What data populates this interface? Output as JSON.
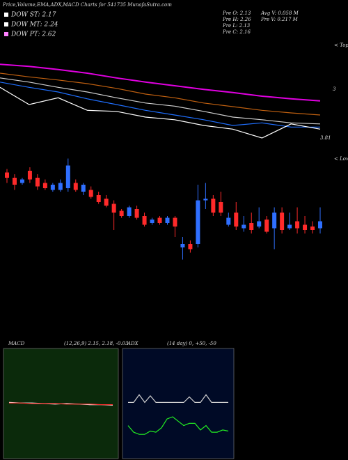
{
  "header": {
    "title": "Price,Volume,EMA,ADX,MACD Charts for 541735 MunafaSutra.com",
    "dow": [
      "DOW ST: 2.17",
      "DOW MT: 2.24",
      "DOW PT: 2.62"
    ],
    "prev": [
      "Pre  O: 2.13",
      "Pre  H: 2.26",
      "Pre  L: 2.13",
      "Pre  C: 2.16"
    ],
    "volume": [
      "Avg V: 0.058 M",
      "Pre  V: 0.217 M"
    ]
  },
  "chart_data": [
    {
      "type": "line",
      "annotations": [
        "< Tops",
        "< Lows",
        "3",
        "3.81"
      ],
      "ylim": [
        2,
        4
      ],
      "series": [
        {
          "color": "#e000e0",
          "values": [
            3.57,
            3.53,
            3.47,
            3.4,
            3.31,
            3.23,
            3.16,
            3.09,
            3.03,
            2.96,
            2.91,
            2.87
          ]
        },
        {
          "color": "#c06010",
          "values": [
            3.4,
            3.33,
            3.27,
            3.2,
            3.11,
            3.0,
            2.93,
            2.83,
            2.76,
            2.69,
            2.64,
            2.6
          ]
        },
        {
          "color": "#d0d0d0",
          "values": [
            3.31,
            3.23,
            3.13,
            3.04,
            2.93,
            2.83,
            2.77,
            2.67,
            2.56,
            2.51,
            2.45,
            2.43
          ]
        },
        {
          "color": "#1f6fff",
          "values": [
            3.23,
            3.13,
            3.04,
            2.91,
            2.8,
            2.69,
            2.6,
            2.51,
            2.4,
            2.45,
            2.37,
            2.37
          ]
        },
        {
          "color": "#ffffff",
          "values": [
            3.13,
            2.8,
            2.93,
            2.69,
            2.67,
            2.56,
            2.51,
            2.4,
            2.33,
            2.16,
            2.43,
            2.33
          ]
        }
      ]
    },
    {
      "type": "candlestick",
      "ylim": [
        1.86,
        3.22
      ],
      "up_color": "#2f6fff",
      "down_color": "#ff2a2a",
      "open": [
        2.47,
        2.44,
        2.41,
        2.48,
        2.44,
        2.41,
        2.37,
        2.37,
        2.38,
        2.41,
        2.36,
        2.37,
        2.34,
        2.32,
        2.29,
        2.25,
        2.22,
        2.26,
        2.22,
        2.18,
        2.21,
        2.18,
        2.21,
        2.04,
        2.06,
        2.06,
        2.31,
        2.32,
        2.3,
        2.17,
        2.24,
        2.15,
        2.18,
        2.16,
        2.2,
        2.15,
        2.24,
        2.15,
        2.19,
        2.17,
        2.16,
        2.15
      ],
      "high": [
        2.49,
        2.46,
        2.44,
        2.5,
        2.46,
        2.43,
        2.41,
        2.43,
        2.55,
        2.43,
        2.41,
        2.39,
        2.36,
        2.34,
        2.31,
        2.26,
        2.28,
        2.28,
        2.24,
        2.21,
        2.22,
        2.22,
        2.22,
        2.1,
        2.08,
        2.4,
        2.41,
        2.34,
        2.36,
        2.24,
        2.3,
        2.22,
        2.24,
        2.27,
        2.22,
        2.27,
        2.27,
        2.24,
        2.27,
        2.22,
        2.19,
        2.27
      ],
      "low": [
        2.41,
        2.37,
        2.4,
        2.41,
        2.37,
        2.37,
        2.36,
        2.36,
        2.36,
        2.36,
        2.34,
        2.32,
        2.29,
        2.27,
        2.14,
        2.21,
        2.21,
        2.2,
        2.16,
        2.17,
        2.17,
        2.17,
        2.1,
        1.97,
        2.01,
        2.04,
        2.26,
        2.22,
        2.22,
        2.16,
        2.14,
        2.13,
        2.12,
        2.15,
        2.12,
        2.03,
        2.12,
        2.14,
        2.12,
        2.12,
        2.12,
        2.12
      ],
      "close": [
        2.44,
        2.4,
        2.43,
        2.43,
        2.39,
        2.38,
        2.4,
        2.41,
        2.51,
        2.37,
        2.4,
        2.33,
        2.3,
        2.28,
        2.24,
        2.22,
        2.27,
        2.21,
        2.17,
        2.2,
        2.18,
        2.21,
        2.16,
        2.06,
        2.03,
        2.31,
        2.32,
        2.24,
        2.24,
        2.21,
        2.16,
        2.17,
        2.14,
        2.19,
        2.13,
        2.24,
        2.14,
        2.17,
        2.15,
        2.14,
        2.14,
        2.19
      ]
    },
    {
      "type": "line",
      "title": "MACD",
      "subtitle": "(12,26,9) 2.15, 2.18, -0.03",
      "ylim": [
        -1,
        1
      ],
      "background": "#0b2a0b",
      "series": [
        {
          "color": "#ffffff",
          "values": [
            0.02,
            0.01,
            0.01,
            0.0,
            -0.01,
            0.0,
            -0.01,
            -0.02,
            -0.02,
            -0.03
          ]
        },
        {
          "color": "#ff3030",
          "values": [
            0.01,
            0.01,
            0.0,
            0.0,
            0.0,
            -0.01,
            -0.01,
            -0.01,
            -0.02,
            -0.02
          ]
        }
      ]
    },
    {
      "type": "line",
      "title": "ADX",
      "subtitle": "(14 day) 0, +50, -50",
      "ylim": [
        0,
        100
      ],
      "background": "#000a26",
      "series": [
        {
          "color": "#d0d0d0",
          "values": [
            51,
            51,
            58,
            51,
            57,
            51,
            51,
            51,
            51,
            51,
            51,
            56,
            51,
            51,
            58,
            51,
            51,
            51,
            51
          ]
        },
        {
          "color": "#22ee22",
          "values": [
            30,
            24,
            22,
            22,
            25,
            24,
            28,
            36,
            38,
            34,
            30,
            32,
            32,
            26,
            30,
            24,
            24,
            26,
            25
          ]
        }
      ]
    }
  ]
}
